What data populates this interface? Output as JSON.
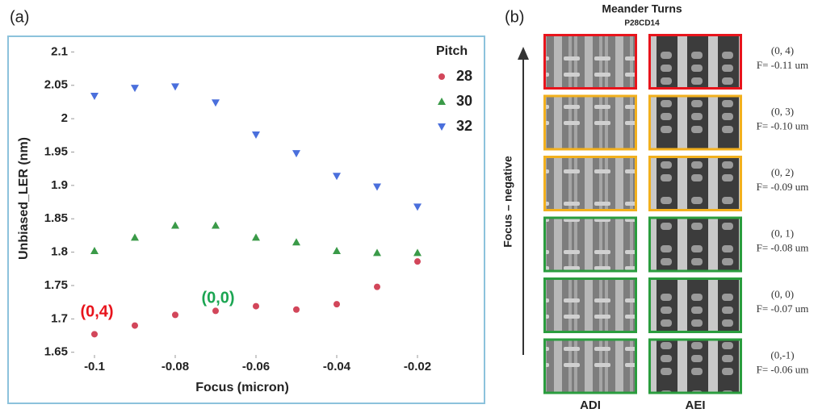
{
  "chart_data": {
    "type": "scatter",
    "panel_label": "(a)",
    "x_label": "Focus (micron)",
    "y_label": "Unbiased_LER (nm)",
    "x": [
      -0.1,
      -0.09,
      -0.08,
      -0.07,
      -0.06,
      -0.05,
      -0.04,
      -0.03,
      -0.02
    ],
    "series": [
      {
        "name": "28",
        "color": "#d2465a",
        "marker": "circle",
        "values": [
          1.677,
          1.69,
          1.706,
          1.712,
          1.719,
          1.714,
          1.722,
          1.748,
          1.786
        ]
      },
      {
        "name": "30",
        "color": "#3a9a48",
        "marker": "triangle-up",
        "values": [
          1.802,
          1.822,
          1.84,
          1.84,
          1.822,
          1.815,
          1.802,
          1.799,
          1.799
        ]
      },
      {
        "name": "32",
        "color": "#4a6fdc",
        "marker": "triangle-down",
        "values": [
          2.034,
          2.046,
          2.048,
          2.024,
          1.976,
          1.948,
          1.914,
          1.898,
          1.868
        ]
      }
    ],
    "legend_title": "Pitch",
    "xlim": [
      -0.105,
      -0.018
    ],
    "ylim": [
      1.646,
      2.115
    ],
    "xticks": [
      -0.1,
      -0.08,
      -0.06,
      -0.04,
      -0.02
    ],
    "yticks": [
      1.65,
      1.7,
      1.75,
      1.8,
      1.85,
      1.9,
      1.95,
      2,
      2.05,
      2.1
    ],
    "annotations": [
      {
        "text": "(0,4)",
        "color": "#e8141c"
      },
      {
        "text": "(0,0)",
        "color": "#1ba552"
      }
    ]
  },
  "panel_b": {
    "panel_label": "(b)",
    "title": "Meander Turns",
    "subtitle": "P28CD14",
    "axis_label": "Focus – negative",
    "columns": [
      "ADI",
      "AEI"
    ],
    "rows": [
      {
        "label": "(0, 4)",
        "focus": "F= -0.11 um",
        "color": "#e8141c"
      },
      {
        "label": "(0, 3)",
        "focus": "F= -0.10 um",
        "color": "#f2b01e"
      },
      {
        "label": "(0, 2)",
        "focus": "F= -0.09 um",
        "color": "#f2b01e"
      },
      {
        "label": "(0, 1)",
        "focus": "F= -0.08 um",
        "color": "#2a9d3e"
      },
      {
        "label": "(0, 0)",
        "focus": "F= -0.07 um",
        "color": "#2a9d3e"
      },
      {
        "label": "(0,-1)",
        "focus": "F= -0.06 um",
        "color": "#2a9d3e"
      }
    ]
  }
}
